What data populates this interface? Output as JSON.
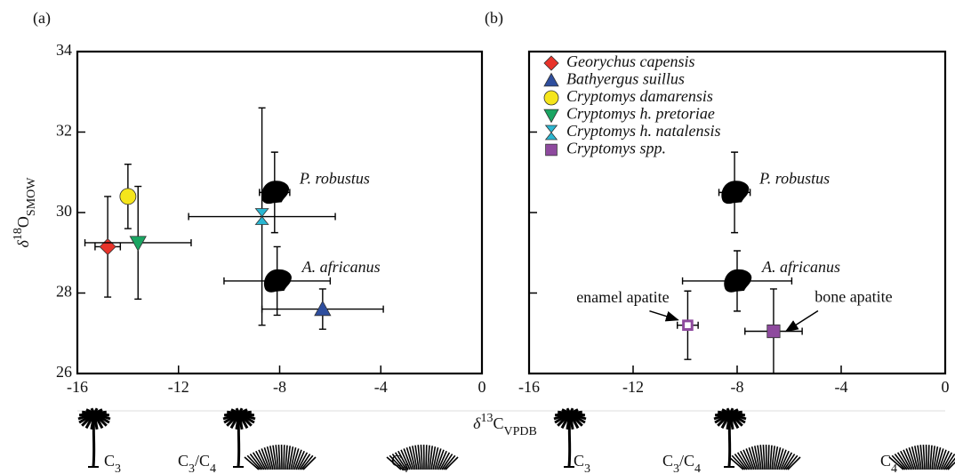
{
  "chart_data": [
    {
      "type": "scatter",
      "panel_label": "(a)",
      "xlim": [
        -16,
        0
      ],
      "xticks": [
        -16,
        -12,
        -8,
        -4,
        0
      ],
      "ylim": [
        26,
        34
      ],
      "yticks": [
        26,
        28,
        30,
        32,
        34
      ],
      "show_ytick_labels": true,
      "ylabel": [
        {
          "text": "δ"
        },
        {
          "sup": "18"
        },
        {
          "text": "O"
        },
        {
          "sub": "SMOW"
        }
      ],
      "xlabel": [
        {
          "text": "δ"
        },
        {
          "sup": "13"
        },
        {
          "text": "C"
        },
        {
          "sub": "VPDB"
        }
      ],
      "series": [
        {
          "color": "#e8332a",
          "marker": "diamond",
          "x": [
            -14.8
          ],
          "xerr": [
            0.5
          ],
          "y": [
            29.15
          ],
          "yerr": [
            1.25
          ]
        },
        {
          "color": "#2e4e9e",
          "marker": "triangle-up",
          "x": [
            -6.3
          ],
          "xerr": [
            2.4
          ],
          "y": [
            27.6
          ],
          "yerr": [
            0.5
          ]
        },
        {
          "color": "#f5e51b",
          "marker": "circle",
          "x": [
            -14.0
          ],
          "xerr": [
            0
          ],
          "y": [
            30.4
          ],
          "yerr": [
            0.8
          ]
        },
        {
          "color": "#1aa562",
          "marker": "triangle-down",
          "x": [
            -13.6
          ],
          "xerr": [
            2.1
          ],
          "y": [
            29.25
          ],
          "yerr": [
            1.4
          ]
        },
        {
          "color": "#2ab7d2",
          "marker": "hourglass",
          "x": [
            -8.7
          ],
          "xerr": [
            2.9
          ],
          "y": [
            29.9
          ],
          "yerr": [
            2.7
          ]
        }
      ],
      "hominins": [
        {
          "label": "P. robustus",
          "x": -8.2,
          "xerr": 0.6,
          "y": 30.5,
          "yerr": 1.0
        },
        {
          "label": "A. africanus",
          "x": -8.1,
          "xerr": 2.1,
          "y": 28.3,
          "yerr": 0.85
        }
      ],
      "vegetation_labels": [
        [
          {
            "text": "C"
          },
          {
            "sub": "3"
          }
        ],
        [
          {
            "text": "C"
          },
          {
            "sub": "3"
          },
          {
            "text": "/C"
          },
          {
            "sub": "4"
          }
        ],
        [
          {
            "text": "C"
          },
          {
            "sub": "4"
          }
        ]
      ]
    },
    {
      "type": "scatter",
      "panel_label": "(b)",
      "xlim": [
        -16,
        0
      ],
      "xticks": [
        -16,
        -12,
        -8,
        -4,
        0
      ],
      "ylim": [
        26,
        34
      ],
      "yticks": [
        26,
        28,
        30,
        32,
        34
      ],
      "show_ytick_labels": false,
      "legend": "upper left",
      "series": [
        {
          "name": "Georychus capensis",
          "color": "#e8332a",
          "marker": "diamond"
        },
        {
          "name": "Bathyergus suillus",
          "color": "#2e4e9e",
          "marker": "triangle-up"
        },
        {
          "name": "Cryptomys damarensis",
          "color": "#f5e51b",
          "marker": "circle"
        },
        {
          "name": "Cryptomys h. pretoriae",
          "color": "#1aa562",
          "marker": "triangle-down"
        },
        {
          "name": "Cryptomys h. natalensis",
          "color": "#2ab7d2",
          "marker": "hourglass"
        },
        {
          "name": "Cryptomys spp.",
          "color": "#8e4a9e",
          "marker": "square",
          "x": [
            -9.9,
            -6.6
          ],
          "xerr": [
            0.4,
            1.1
          ],
          "y": [
            27.2,
            27.05
          ],
          "yerr": [
            0.85,
            1.05
          ],
          "marker_fill": [
            "#ffffff",
            "#8e4a9e"
          ],
          "point_labels": [
            "enamel apatite",
            "bone apatite"
          ]
        }
      ],
      "hominins": [
        {
          "label": "P. robustus",
          "x": -8.1,
          "xerr": 0.6,
          "y": 30.5,
          "yerr": 1.0
        },
        {
          "label": "A. africanus",
          "x": -8.0,
          "xerr": 2.1,
          "y": 28.3,
          "yerr": 0.75
        }
      ],
      "vegetation_labels": [
        [
          {
            "text": "C"
          },
          {
            "sub": "3"
          }
        ],
        [
          {
            "text": "C"
          },
          {
            "sub": "3"
          },
          {
            "text": "/C"
          },
          {
            "sub": "4"
          }
        ],
        [
          {
            "text": "C"
          },
          {
            "sub": "4"
          }
        ]
      ]
    }
  ]
}
